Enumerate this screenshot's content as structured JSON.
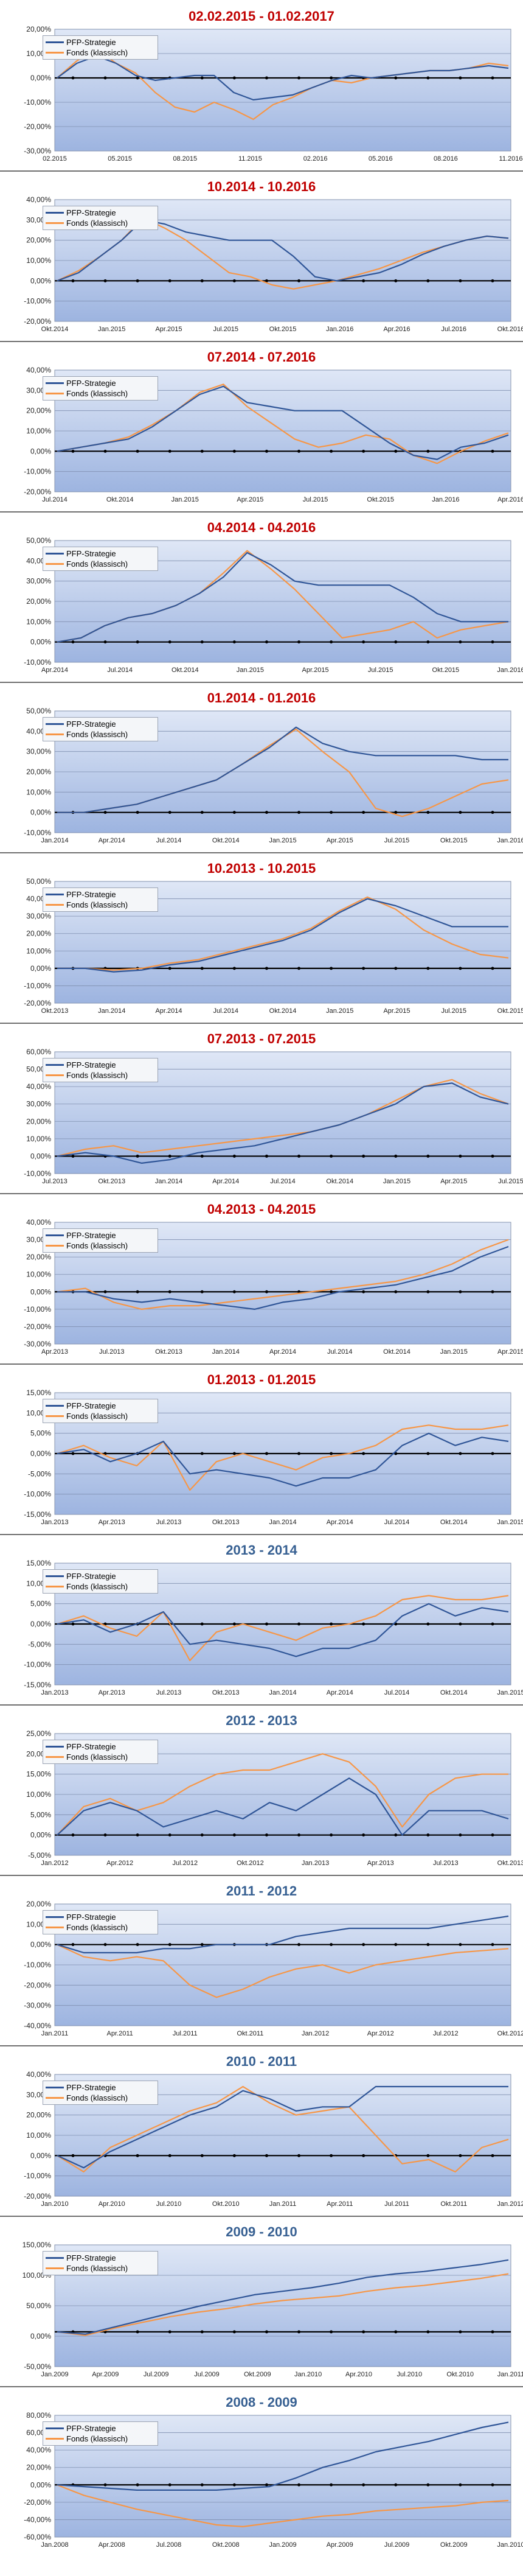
{
  "colors": {
    "strategy": "#2f5597",
    "fund": "#f79646",
    "background_top": "#dfe7f6",
    "background_bottom": "#9db4e0"
  },
  "legend": {
    "strategy": "PFP-Strategie",
    "fund": "Fonds (klassisch)"
  },
  "chart_data": [
    {
      "type": "line",
      "title": "02.02.2015 - 01.02.2017",
      "title_color": "red",
      "ylim": [
        -30,
        20
      ],
      "yticks": [
        "20,00%",
        "10,00%",
        "0,00%",
        "-10,00%",
        "-20,00%",
        "-30,00%"
      ],
      "xticks": [
        "02.2015",
        "05.2015",
        "08.2015",
        "11.2015",
        "02.2016",
        "05.2016",
        "08.2016",
        "11.2016"
      ],
      "series": [
        {
          "name": "PFP-Strategie",
          "values": [
            0,
            6,
            9,
            6,
            1,
            -1,
            0,
            1,
            1,
            -6,
            -9,
            -8,
            -7,
            -4,
            -1,
            1,
            0,
            1,
            2,
            3,
            3,
            4,
            5,
            4
          ]
        },
        {
          "name": "Fonds (klassisch)",
          "values": [
            0,
            7,
            12,
            6,
            2,
            -6,
            -12,
            -14,
            -10,
            -13,
            -17,
            -11,
            -8,
            -4,
            -1,
            -2,
            0,
            1,
            2,
            3,
            3,
            4,
            6,
            5
          ]
        }
      ]
    },
    {
      "type": "line",
      "title": "10.2014 - 10.2016",
      "title_color": "red",
      "ylim": [
        -20,
        40
      ],
      "yticks": [
        "40,00%",
        "30,00%",
        "20,00%",
        "10,00%",
        "0,00%",
        "-10,00%",
        "-20,00%"
      ],
      "xticks": [
        "Okt.2014",
        "Jan.2015",
        "Apr.2015",
        "Jul.2015",
        "Okt.2015",
        "Jan.2016",
        "Apr.2016",
        "Jul.2016",
        "Okt.2016"
      ],
      "series": [
        {
          "name": "PFP-Strategie",
          "values": [
            0,
            4,
            12,
            20,
            30,
            28,
            24,
            22,
            20,
            20,
            20,
            12,
            2,
            0,
            2,
            4,
            8,
            13,
            17,
            20,
            22,
            21
          ]
        },
        {
          "name": "Fonds (klassisch)",
          "values": [
            0,
            5,
            12,
            20,
            31,
            26,
            20,
            12,
            4,
            2,
            -2,
            -4,
            -2,
            0,
            3,
            6,
            10,
            14,
            17,
            20,
            22,
            21
          ]
        }
      ]
    },
    {
      "type": "line",
      "title": "07.2014 - 07.2016",
      "title_color": "red",
      "ylim": [
        -20,
        40
      ],
      "yticks": [
        "40,00%",
        "30,00%",
        "20,00%",
        "10,00%",
        "0,00%",
        "-10,00%",
        "-20,00%"
      ],
      "xticks": [
        "Jul.2014",
        "Okt.2014",
        "Jan.2015",
        "Apr.2015",
        "Jul.2015",
        "Okt.2015",
        "Jan.2016",
        "Apr.2016"
      ],
      "series": [
        {
          "name": "PFP-Strategie",
          "values": [
            0,
            2,
            4,
            6,
            12,
            20,
            28,
            32,
            24,
            22,
            20,
            20,
            20,
            12,
            4,
            -2,
            -4,
            2,
            4,
            8
          ]
        },
        {
          "name": "Fonds (klassisch)",
          "values": [
            0,
            2,
            4,
            7,
            13,
            20,
            29,
            33,
            22,
            14,
            6,
            2,
            4,
            8,
            6,
            -2,
            -6,
            0,
            5,
            9
          ]
        }
      ]
    },
    {
      "type": "line",
      "title": "04.2014 - 04.2016",
      "title_color": "red",
      "ylim": [
        -10,
        50
      ],
      "yticks": [
        "50,00%",
        "40,00%",
        "30,00%",
        "20,00%",
        "10,00%",
        "0,00%",
        "-10,00%"
      ],
      "xticks": [
        "Apr.2014",
        "Jul.2014",
        "Okt.2014",
        "Jan.2015",
        "Apr.2015",
        "Jul.2015",
        "Okt.2015",
        "Jan.2016"
      ],
      "series": [
        {
          "name": "PFP-Strategie",
          "values": [
            0,
            2,
            8,
            12,
            14,
            18,
            24,
            32,
            44,
            38,
            30,
            28,
            28,
            28,
            28,
            22,
            14,
            10,
            10,
            10
          ]
        },
        {
          "name": "Fonds (klassisch)",
          "values": [
            0,
            2,
            8,
            12,
            14,
            18,
            24,
            34,
            45,
            36,
            26,
            14,
            2,
            4,
            6,
            10,
            2,
            6,
            8,
            10
          ]
        }
      ]
    },
    {
      "type": "line",
      "title": "01.2014 - 01.2016",
      "title_color": "red",
      "ylim": [
        -10,
        50
      ],
      "yticks": [
        "50,00%",
        "40,00%",
        "30,00%",
        "20,00%",
        "10,00%",
        "0,00%",
        "-10,00%"
      ],
      "xticks": [
        "Jan.2014",
        "Apr.2014",
        "Jul.2014",
        "Okt.2014",
        "Jan.2015",
        "Apr.2015",
        "Jul.2015",
        "Okt.2015",
        "Jan.2016"
      ],
      "series": [
        {
          "name": "PFP-Strategie",
          "values": [
            0,
            0,
            2,
            4,
            8,
            12,
            16,
            24,
            32,
            42,
            34,
            30,
            28,
            28,
            28,
            28,
            26,
            26
          ]
        },
        {
          "name": "Fonds (klassisch)",
          "values": [
            0,
            0,
            2,
            4,
            8,
            12,
            16,
            24,
            33,
            41,
            30,
            20,
            2,
            -2,
            2,
            8,
            14,
            16
          ]
        }
      ]
    },
    {
      "type": "line",
      "title": "10.2013 - 10.2015",
      "title_color": "red",
      "ylim": [
        -20,
        50
      ],
      "yticks": [
        "50,00%",
        "40,00%",
        "30,00%",
        "20,00%",
        "10,00%",
        "0,00%",
        "-10,00%",
        "-20,00%"
      ],
      "xticks": [
        "Okt.2013",
        "Jan.2014",
        "Apr.2014",
        "Jul.2014",
        "Okt.2014",
        "Jan.2015",
        "Apr.2015",
        "Jul.2015",
        "Okt.2015"
      ],
      "series": [
        {
          "name": "PFP-Strategie",
          "values": [
            0,
            0,
            -2,
            -1,
            2,
            4,
            8,
            12,
            16,
            22,
            32,
            40,
            36,
            30,
            24,
            24,
            24
          ]
        },
        {
          "name": "Fonds (klassisch)",
          "values": [
            0,
            0,
            -1,
            0,
            3,
            5,
            9,
            13,
            17,
            23,
            33,
            41,
            34,
            22,
            14,
            8,
            6
          ]
        }
      ]
    },
    {
      "type": "line",
      "title": "07.2013 - 07.2015",
      "title_color": "red",
      "ylim": [
        -10,
        60
      ],
      "yticks": [
        "60,00%",
        "50,00%",
        "40,00%",
        "30,00%",
        "20,00%",
        "10,00%",
        "0,00%",
        "-10,00%"
      ],
      "xticks": [
        "Jul.2013",
        "Okt.2013",
        "Jan.2014",
        "Apr.2014",
        "Jul.2014",
        "Okt.2014",
        "Jan.2015",
        "Apr.2015",
        "Jul.2015"
      ],
      "series": [
        {
          "name": "PFP-Strategie",
          "values": [
            0,
            2,
            0,
            -4,
            -2,
            2,
            4,
            6,
            10,
            14,
            18,
            24,
            30,
            40,
            42,
            34,
            30
          ]
        },
        {
          "name": "Fonds (klassisch)",
          "values": [
            0,
            4,
            6,
            2,
            4,
            6,
            8,
            10,
            12,
            14,
            18,
            24,
            32,
            40,
            44,
            36,
            30
          ]
        }
      ]
    },
    {
      "type": "line",
      "title": "04.2013 - 04.2015",
      "title_color": "red",
      "ylim": [
        -30,
        40
      ],
      "yticks": [
        "40,00%",
        "30,00%",
        "20,00%",
        "10,00%",
        "0,00%",
        "-10,00%",
        "-20,00%",
        "-30,00%"
      ],
      "xticks": [
        "Apr.2013",
        "Jul.2013",
        "Okt.2013",
        "Jan.2014",
        "Apr.2014",
        "Jul.2014",
        "Okt.2014",
        "Jan.2015",
        "Apr.2015"
      ],
      "series": [
        {
          "name": "PFP-Strategie",
          "values": [
            0,
            0,
            -4,
            -6,
            -4,
            -6,
            -8,
            -10,
            -6,
            -4,
            0,
            2,
            4,
            8,
            12,
            20,
            26
          ]
        },
        {
          "name": "Fonds (klassisch)",
          "values": [
            0,
            2,
            -6,
            -10,
            -8,
            -8,
            -6,
            -4,
            -2,
            0,
            2,
            4,
            6,
            10,
            16,
            24,
            30
          ]
        }
      ]
    },
    {
      "type": "line",
      "title": "01.2013 - 01.2015",
      "title_color": "red",
      "ylim": [
        -15,
        15
      ],
      "yticks": [
        "15,00%",
        "10,00%",
        "5,00%",
        "0,00%",
        "-5,00%",
        "-10,00%",
        "-15,00%"
      ],
      "xticks": [
        "Jan.2013",
        "Apr.2013",
        "Jul.2013",
        "Okt.2013",
        "Jan.2014",
        "Apr.2014",
        "Jul.2014",
        "Okt.2014",
        "Jan.2015"
      ],
      "series": [
        {
          "name": "PFP-Strategie",
          "values": [
            0,
            1,
            -2,
            0,
            3,
            -5,
            -4,
            -5,
            -6,
            -8,
            -6,
            -6,
            -4,
            2,
            5,
            2,
            4,
            3
          ]
        },
        {
          "name": "Fonds (klassisch)",
          "values": [
            0,
            2,
            -1,
            -3,
            3,
            -9,
            -2,
            0,
            -2,
            -4,
            -1,
            0,
            2,
            6,
            7,
            6,
            6,
            7
          ]
        }
      ]
    },
    {
      "type": "line",
      "title": "2013 - 2014",
      "title_color": "blue",
      "ylim": [
        -15,
        15
      ],
      "yticks": [
        "15,00%",
        "10,00%",
        "5,00%",
        "0,00%",
        "-5,00%",
        "-10,00%",
        "-15,00%"
      ],
      "xticks": [
        "Jan.2013",
        "Apr.2013",
        "Jul.2013",
        "Okt.2013",
        "Jan.2014",
        "Apr.2014",
        "Jul.2014",
        "Okt.2014",
        "Jan.2015"
      ],
      "series": [
        {
          "name": "PFP-Strategie",
          "values": [
            0,
            1,
            -2,
            0,
            3,
            -5,
            -4,
            -5,
            -6,
            -8,
            -6,
            -6,
            -4,
            2,
            5,
            2,
            4,
            3
          ]
        },
        {
          "name": "Fonds (klassisch)",
          "values": [
            0,
            2,
            -1,
            -3,
            3,
            -9,
            -2,
            0,
            -2,
            -4,
            -1,
            0,
            2,
            6,
            7,
            6,
            6,
            7
          ]
        }
      ]
    },
    {
      "type": "line",
      "title": "2012 - 2013",
      "title_color": "blue",
      "ylim": [
        -5,
        25
      ],
      "yticks": [
        "25,00%",
        "20,00%",
        "15,00%",
        "10,00%",
        "5,00%",
        "0,00%",
        "-5,00%"
      ],
      "xticks": [
        "Jan.2012",
        "Apr.2012",
        "Jul.2012",
        "Okt.2012",
        "Jan.2013",
        "Apr.2013",
        "Jul.2013",
        "Okt.2013"
      ],
      "series": [
        {
          "name": "PFP-Strategie",
          "values": [
            0,
            6,
            8,
            6,
            2,
            4,
            6,
            4,
            8,
            6,
            10,
            14,
            10,
            0,
            6,
            6,
            6,
            4
          ]
        },
        {
          "name": "Fonds (klassisch)",
          "values": [
            0,
            7,
            9,
            6,
            8,
            12,
            15,
            16,
            16,
            18,
            20,
            18,
            12,
            2,
            10,
            14,
            15,
            15
          ]
        }
      ]
    },
    {
      "type": "line",
      "title": "2011 - 2012",
      "title_color": "blue",
      "ylim": [
        -40,
        20
      ],
      "yticks": [
        "20,00%",
        "10,00%",
        "0,00%",
        "-10,00%",
        "-20,00%",
        "-30,00%",
        "-40,00%"
      ],
      "xticks": [
        "Jan.2011",
        "Apr.2011",
        "Jul.2011",
        "Okt.2011",
        "Jan.2012",
        "Apr.2012",
        "Jul.2012",
        "Okt.2012"
      ],
      "series": [
        {
          "name": "PFP-Strategie",
          "values": [
            0,
            -4,
            -4,
            -4,
            -2,
            -2,
            0,
            0,
            0,
            4,
            6,
            8,
            8,
            8,
            8,
            10,
            12,
            14
          ]
        },
        {
          "name": "Fonds (klassisch)",
          "values": [
            0,
            -6,
            -8,
            -6,
            -8,
            -20,
            -26,
            -22,
            -16,
            -12,
            -10,
            -14,
            -10,
            -8,
            -6,
            -4,
            -3,
            -2
          ]
        }
      ]
    },
    {
      "type": "line",
      "title": "2010 - 2011",
      "title_color": "blue",
      "ylim": [
        -20,
        40
      ],
      "yticks": [
        "40,00%",
        "30,00%",
        "20,00%",
        "10,00%",
        "0,00%",
        "-10,00%",
        "-20,00%"
      ],
      "xticks": [
        "Jan.2010",
        "Apr.2010",
        "Jul.2010",
        "Okt.2010",
        "Jan.2011",
        "Apr.2011",
        "Jul.2011",
        "Okt.2011",
        "Jan.2012"
      ],
      "series": [
        {
          "name": "PFP-Strategie",
          "values": [
            0,
            -6,
            2,
            8,
            14,
            20,
            24,
            32,
            28,
            22,
            24,
            24,
            34,
            34,
            34,
            34,
            34,
            34
          ]
        },
        {
          "name": "Fonds (klassisch)",
          "values": [
            0,
            -8,
            4,
            10,
            16,
            22,
            26,
            34,
            26,
            20,
            22,
            24,
            10,
            -4,
            -2,
            -8,
            4,
            8
          ]
        }
      ]
    },
    {
      "type": "line",
      "title": "2009 - 2010",
      "title_color": "blue",
      "ylim": [
        -60,
        150
      ],
      "yticks": [
        "150,00%",
        "100,00%",
        "50,00%",
        "0,00%",
        "-50,00%"
      ],
      "xticks": [
        "Jan.2009",
        "Apr.2009",
        "Jul.2009",
        "Jul.2009",
        "Okt.2009",
        "Jan.2010",
        "Apr.2010",
        "Jul.2010",
        "Okt.2010",
        "Jan.2011"
      ],
      "series": [
        {
          "name": "PFP-Strategie",
          "values": [
            0,
            -4,
            8,
            20,
            32,
            44,
            54,
            64,
            70,
            76,
            84,
            94,
            100,
            104,
            110,
            116,
            124
          ]
        },
        {
          "name": "Fonds (klassisch)",
          "values": [
            0,
            -6,
            6,
            16,
            26,
            34,
            40,
            48,
            54,
            58,
            62,
            70,
            76,
            80,
            86,
            92,
            100
          ]
        }
      ]
    },
    {
      "type": "line",
      "title": "2008 - 2009",
      "title_color": "blue",
      "ylim": [
        -60,
        80
      ],
      "yticks": [
        "80,00%",
        "60,00%",
        "40,00%",
        "20,00%",
        "0,00%",
        "-20,00%",
        "-40,00%",
        "-60,00%"
      ],
      "xticks": [
        "Jan.2008",
        "Apr.2008",
        "Jul.2008",
        "Okt.2008",
        "Jan.2009",
        "Apr.2009",
        "Jul.2009",
        "Okt.2009",
        "Jan.2010"
      ],
      "series": [
        {
          "name": "PFP-Strategie",
          "values": [
            0,
            -2,
            -4,
            -6,
            -6,
            -6,
            -6,
            -4,
            -2,
            8,
            20,
            28,
            38,
            44,
            50,
            58,
            66,
            72
          ]
        },
        {
          "name": "Fonds (klassisch)",
          "values": [
            0,
            -12,
            -20,
            -28,
            -34,
            -40,
            -46,
            -48,
            -44,
            -40,
            -36,
            -34,
            -30,
            -28,
            -26,
            -24,
            -20,
            -18
          ]
        }
      ]
    }
  ]
}
